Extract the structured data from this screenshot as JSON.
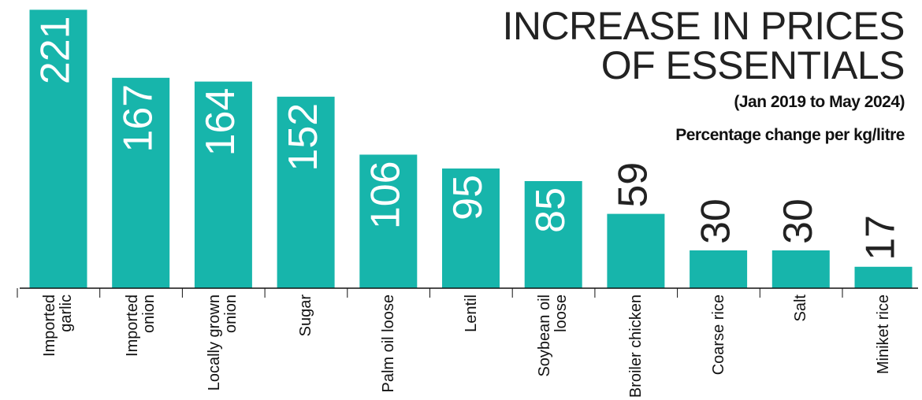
{
  "chart_data": {
    "type": "bar",
    "title": "INCREASE IN PRICES OF ESSENTIALS",
    "subtitle": "(Jan 2019 to May 2024)",
    "unit_note": "Percentage  change per kg/litre",
    "categories": [
      "Imported garlic",
      "Imported onion",
      "Locally grown onion",
      "Sugar",
      "Palm oil loose",
      "Lentil",
      "Soybean oil loose",
      "Broiler chicken",
      "Coarse rice",
      "Salt",
      "Miniket rice"
    ],
    "values": [
      221,
      167,
      164,
      152,
      106,
      95,
      85,
      59,
      30,
      30,
      17
    ],
    "color": "#17b5ab"
  }
}
